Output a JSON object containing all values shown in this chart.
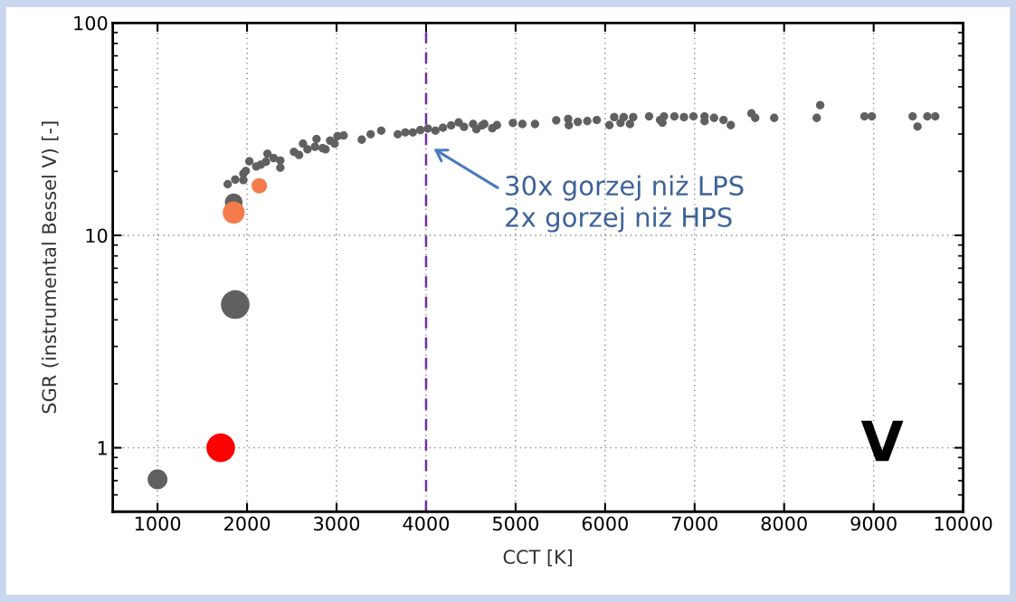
{
  "chart_data": {
    "type": "scatter",
    "xlabel": "CCT [K]",
    "ylabel": "SGR (instrumental Bessel V) [-]",
    "xlim": [
      500,
      10000
    ],
    "xticks": [
      1000,
      2000,
      3000,
      4000,
      5000,
      6000,
      7000,
      8000,
      9000,
      10000
    ],
    "ylim": [
      0.5,
      100
    ],
    "yticks": [
      1,
      10,
      100
    ],
    "log": "y",
    "grid": true,
    "legend": false,
    "series": [
      {
        "color": "#606060",
        "x": [
          1784,
          1868,
          1959,
          1959,
          1986,
          2026,
          2103,
          2153,
          2211,
          2228,
          2298,
          2372,
          2372,
          2524,
          2581,
          2625,
          2675,
          2759,
          2776,
          2844,
          2877,
          2928,
          2978,
          3011,
          3079,
          3281,
          3381,
          3499,
          3684,
          3768,
          3852,
          3936,
          4020,
          4105,
          4189,
          4280,
          4364,
          4424,
          4525,
          4626,
          4562,
          4651,
          4740,
          4792,
          4970,
          5076,
          5217,
          5454,
          5588,
          5595,
          5695,
          5801,
          5907,
          6048,
          6102,
          6208,
          6172,
          6278,
          6314,
          6491,
          6614,
          6640,
          6658,
          6774,
          6881,
          6987,
          7111,
          7111,
          7217,
          7323,
          7404,
          7635,
          7677,
          7889,
          8364,
          8403,
          8898,
          8980,
          9436,
          9490,
          9600,
          9688
        ],
        "values": [
          17.4,
          18.3,
          18.2,
          19.5,
          20.1,
          22.3,
          21.1,
          21.5,
          22.2,
          24.2,
          23.1,
          22.5,
          20.8,
          24.7,
          23.9,
          27.0,
          25.4,
          26.1,
          28.4,
          25.7,
          25.4,
          27.9,
          27.0,
          29.3,
          29.5,
          28.2,
          29.9,
          31.1,
          29.9,
          30.5,
          30.5,
          31.3,
          31.8,
          31.1,
          32.1,
          32.9,
          34.0,
          32.4,
          33.4,
          32.9,
          31.6,
          33.4,
          31.9,
          33.0,
          33.8,
          33.4,
          33.4,
          34.8,
          35.3,
          33.0,
          34.2,
          34.5,
          34.9,
          33.0,
          36.0,
          36.0,
          33.8,
          33.4,
          36.0,
          36.3,
          34.9,
          33.9,
          36.3,
          36.3,
          36.0,
          36.3,
          36.3,
          34.5,
          35.7,
          34.9,
          33.0,
          37.5,
          35.7,
          35.7,
          35.7,
          41.0,
          36.3,
          36.3,
          36.3,
          32.5,
          36.3,
          36.3
        ]
      },
      {
        "type": "bubble",
        "color": "#606060",
        "x": [
          1000,
          1851,
          1868
        ],
        "values": [
          0.71,
          14.3,
          4.72
        ],
        "sizes": [
          0.48,
          0.38,
          1
        ]
      },
      {
        "type": "bubble",
        "color": "#f47b4c",
        "x": [
          2137,
          1851
        ],
        "values": [
          17.1,
          12.8
        ],
        "sizes": [
          0.29,
          0.59
        ]
      },
      {
        "type": "bubble",
        "color": "#ff0000",
        "x": [
          1706
        ],
        "values": [
          1.0
        ],
        "sizes": [
          1
        ]
      }
    ],
    "ref_lines": [
      {
        "axis": "x",
        "value": 4000,
        "color": "#7030a0",
        "line_style": "dashed"
      }
    ],
    "annotations": [
      "30x gorzej niż LPS\n2x gorzej niż HPS",
      "V"
    ]
  }
}
